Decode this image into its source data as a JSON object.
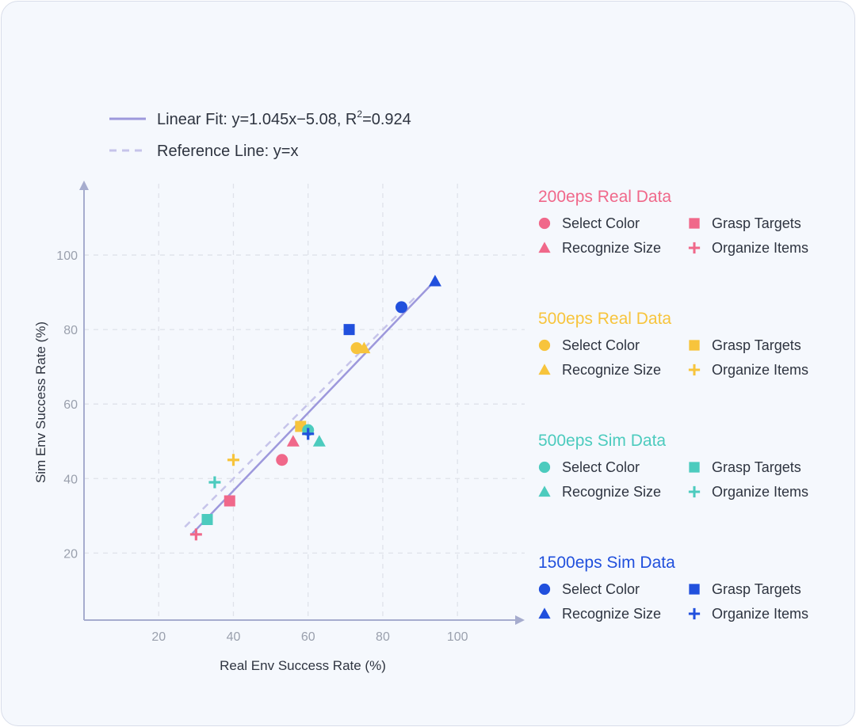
{
  "colors": {
    "fit": "#9d98dc",
    "reference": "#c6c4ea",
    "grid": "#dfe2ea",
    "axis": "#a6acce"
  },
  "fit_legend": {
    "fit_label": "Linear Fit: y=1.045x−5.08, R",
    "fit_sup": "2",
    "fit_tail": "=0.924",
    "reference_label": "Reference Line: y=x"
  },
  "chart_data": {
    "type": "scatter",
    "xlabel": "Real Env Success Rate (%)",
    "ylabel": "Sim Env Success Rate (%)",
    "xlim": [
      0,
      118
    ],
    "ylim": [
      2,
      120
    ],
    "xticks": [
      20,
      40,
      60,
      80,
      100
    ],
    "yticks": [
      20,
      40,
      60,
      80,
      100
    ],
    "grid": true,
    "lines": [
      {
        "name": "Linear Fit: y=1.045x−5.08, R²=0.924",
        "slope": 1.045,
        "intercept": -5.08,
        "x_range": [
          29,
          93
        ],
        "style": "solid",
        "color": "#9d98dc"
      },
      {
        "name": "Reference Line: y=x",
        "slope": 1,
        "intercept": 0,
        "x_range": [
          27,
          89
        ],
        "style": "dashed",
        "color": "#c6c4ea"
      }
    ],
    "groups": [
      {
        "title": "200eps Real Data",
        "color": "#f0688a",
        "points": [
          {
            "task": "Select Color",
            "marker": "circle",
            "x": 53,
            "y": 45
          },
          {
            "task": "Grasp Targets",
            "marker": "square",
            "x": 39,
            "y": 34
          },
          {
            "task": "Recognize Size",
            "marker": "triangle",
            "x": 56,
            "y": 50
          },
          {
            "task": "Organize Items",
            "marker": "plus",
            "x": 30,
            "y": 25
          }
        ]
      },
      {
        "title": "500eps Real Data",
        "color": "#f7c43c",
        "points": [
          {
            "task": "Select Color",
            "marker": "circle",
            "x": 73,
            "y": 75
          },
          {
            "task": "Grasp Targets",
            "marker": "square",
            "x": 58,
            "y": 54
          },
          {
            "task": "Recognize Size",
            "marker": "triangle",
            "x": 75,
            "y": 75
          },
          {
            "task": "Organize Items",
            "marker": "plus",
            "x": 40,
            "y": 45
          }
        ]
      },
      {
        "title": "500eps Sim Data",
        "color": "#4ccbbe",
        "points": [
          {
            "task": "Select Color",
            "marker": "circle",
            "x": 60,
            "y": 53
          },
          {
            "task": "Grasp Targets",
            "marker": "square",
            "x": 33,
            "y": 29
          },
          {
            "task": "Recognize Size",
            "marker": "triangle",
            "x": 63,
            "y": 50
          },
          {
            "task": "Organize Items",
            "marker": "plus",
            "x": 35,
            "y": 39
          }
        ]
      },
      {
        "title": "1500eps Sim Data",
        "color": "#2150dd",
        "points": [
          {
            "task": "Select Color",
            "marker": "circle",
            "x": 85,
            "y": 86
          },
          {
            "task": "Grasp Targets",
            "marker": "square",
            "x": 71,
            "y": 80
          },
          {
            "task": "Recognize Size",
            "marker": "triangle",
            "x": 94,
            "y": 93
          },
          {
            "task": "Organize Items",
            "marker": "plus",
            "x": 60,
            "y": 52
          }
        ]
      }
    ]
  }
}
